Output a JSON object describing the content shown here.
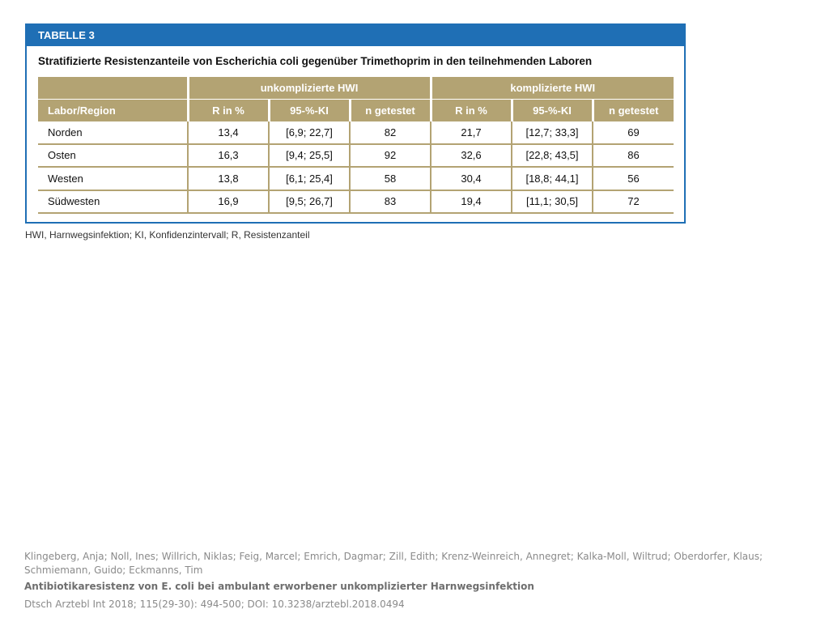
{
  "table": {
    "label": "TABELLE 3",
    "title": "Stratifizierte Resistenzanteile von Escherichia coli gegenüber Trimethoprim in den teilnehmenden Laboren",
    "group_headers": [
      "unkomplizierte HWI",
      "komplizierte HWI"
    ],
    "columns": [
      "Labor/Region",
      "R in %",
      "95-%-KI",
      "n getestet",
      "R in %",
      "95-%-KI",
      "n getestet"
    ],
    "rows": [
      [
        "Norden",
        "13,4",
        "[6,9; 22,7]",
        "82",
        "21,7",
        "[12,7; 33,3]",
        "69"
      ],
      [
        "Osten",
        "16,3",
        "[9,4; 25,5]",
        "92",
        "32,6",
        "[22,8; 43,5]",
        "86"
      ],
      [
        "Westen",
        "13,8",
        "[6,1; 25,4]",
        "58",
        "30,4",
        "[18,8; 44,1]",
        "56"
      ],
      [
        "Südwesten",
        "16,9",
        "[9,5; 26,7]",
        "83",
        "19,4",
        "[11,1; 30,5]",
        "72"
      ]
    ],
    "footnote": "HWI, Harnwegsinfektion; KI, Konfidenzintervall; R, Resistenzanteil"
  },
  "citation": {
    "authors": "Klingeberg, Anja; Noll, Ines; Willrich, Niklas; Feig, Marcel; Emrich, Dagmar; Zill, Edith; Krenz-Weinreich, Annegret; Kalka-Moll, Wiltrud; Oberdorfer, Klaus; Schmiemann, Guido; Eckmanns, Tim",
    "title": "Antibiotikaresistenz von E. coli bei ambulant erworbener unkomplizierter Harnwegsinfektion",
    "reference": "Dtsch Arztebl Int 2018; 115(29-30): 494-500; DOI: 10.3238/arztebl.2018.0494"
  },
  "colors": {
    "header_blue": "#1f6fb5",
    "table_gold": "#b3a373"
  }
}
